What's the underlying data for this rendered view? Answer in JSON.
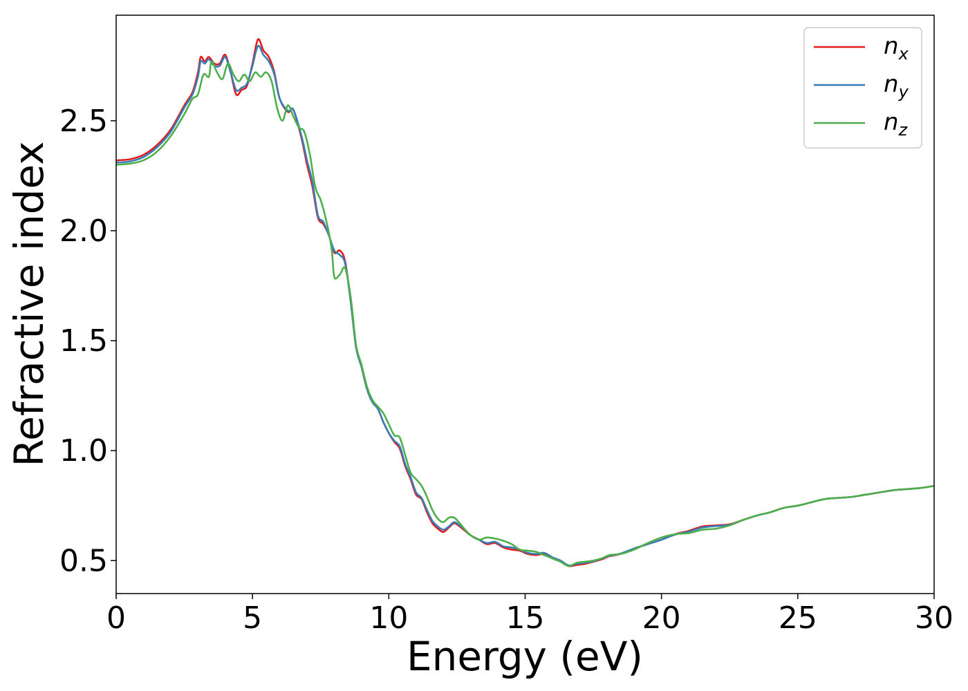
{
  "chart_data": {
    "type": "line",
    "title": "",
    "xlabel": "Energy (eV)",
    "ylabel": "Refractive index",
    "xlim": [
      0,
      30
    ],
    "ylim": [
      0.35,
      2.98
    ],
    "xticks": [
      0,
      5,
      10,
      15,
      20,
      25,
      30
    ],
    "yticks": [
      0.5,
      1.0,
      1.5,
      2.0,
      2.5
    ],
    "xtick_labels": [
      "0",
      "5",
      "10",
      "15",
      "20",
      "25",
      "30"
    ],
    "ytick_labels": [
      "0.5",
      "1.0",
      "1.5",
      "2.0",
      "2.5"
    ],
    "grid": false,
    "legend_position": "top-right",
    "series": [
      {
        "name": "n",
        "subscript": "x",
        "color": "#e41a1c",
        "points": [
          [
            0,
            2.32
          ],
          [
            0.5,
            2.325
          ],
          [
            1.0,
            2.345
          ],
          [
            1.5,
            2.39
          ],
          [
            2.0,
            2.46
          ],
          [
            2.5,
            2.57
          ],
          [
            2.8,
            2.63
          ],
          [
            3.0,
            2.72
          ],
          [
            3.1,
            2.79
          ],
          [
            3.25,
            2.77
          ],
          [
            3.4,
            2.79
          ],
          [
            3.6,
            2.76
          ],
          [
            3.8,
            2.76
          ],
          [
            4.0,
            2.8
          ],
          [
            4.2,
            2.72
          ],
          [
            4.4,
            2.62
          ],
          [
            4.6,
            2.64
          ],
          [
            4.8,
            2.66
          ],
          [
            5.0,
            2.76
          ],
          [
            5.2,
            2.87
          ],
          [
            5.4,
            2.82
          ],
          [
            5.6,
            2.79
          ],
          [
            5.8,
            2.72
          ],
          [
            6.0,
            2.6
          ],
          [
            6.3,
            2.54
          ],
          [
            6.5,
            2.55
          ],
          [
            6.8,
            2.42
          ],
          [
            7.0,
            2.3
          ],
          [
            7.2,
            2.2
          ],
          [
            7.4,
            2.06
          ],
          [
            7.6,
            2.03
          ],
          [
            7.8,
            1.98
          ],
          [
            8.0,
            1.9
          ],
          [
            8.2,
            1.91
          ],
          [
            8.4,
            1.86
          ],
          [
            8.6,
            1.68
          ],
          [
            8.8,
            1.47
          ],
          [
            9.0,
            1.38
          ],
          [
            9.2,
            1.28
          ],
          [
            9.4,
            1.22
          ],
          [
            9.6,
            1.19
          ],
          [
            9.8,
            1.13
          ],
          [
            10.0,
            1.08
          ],
          [
            10.2,
            1.04
          ],
          [
            10.4,
            1.01
          ],
          [
            10.6,
            0.93
          ],
          [
            10.8,
            0.87
          ],
          [
            11.0,
            0.8
          ],
          [
            11.2,
            0.78
          ],
          [
            11.4,
            0.72
          ],
          [
            11.6,
            0.67
          ],
          [
            11.8,
            0.645
          ],
          [
            12.0,
            0.63
          ],
          [
            12.2,
            0.65
          ],
          [
            12.4,
            0.67
          ],
          [
            12.6,
            0.655
          ],
          [
            12.8,
            0.635
          ],
          [
            13.0,
            0.615
          ],
          [
            13.3,
            0.595
          ],
          [
            13.6,
            0.575
          ],
          [
            13.9,
            0.58
          ],
          [
            14.2,
            0.56
          ],
          [
            14.5,
            0.55
          ],
          [
            14.8,
            0.545
          ],
          [
            15.1,
            0.53
          ],
          [
            15.4,
            0.525
          ],
          [
            15.7,
            0.53
          ],
          [
            16.0,
            0.51
          ],
          [
            16.3,
            0.495
          ],
          [
            16.6,
            0.475
          ],
          [
            16.9,
            0.48
          ],
          [
            17.2,
            0.485
          ],
          [
            17.5,
            0.495
          ],
          [
            17.8,
            0.505
          ],
          [
            18.1,
            0.52
          ],
          [
            18.5,
            0.53
          ],
          [
            19.0,
            0.555
          ],
          [
            19.5,
            0.575
          ],
          [
            20.0,
            0.595
          ],
          [
            20.5,
            0.62
          ],
          [
            21.0,
            0.635
          ],
          [
            21.5,
            0.655
          ],
          [
            22.0,
            0.66
          ],
          [
            22.5,
            0.665
          ],
          [
            23.0,
            0.685
          ],
          [
            23.5,
            0.705
          ],
          [
            24.0,
            0.72
          ],
          [
            24.5,
            0.74
          ],
          [
            25.0,
            0.75
          ],
          [
            25.5,
            0.765
          ],
          [
            26.0,
            0.78
          ],
          [
            26.5,
            0.785
          ],
          [
            27.0,
            0.79
          ],
          [
            27.5,
            0.8
          ],
          [
            28.0,
            0.81
          ],
          [
            28.5,
            0.82
          ],
          [
            29.0,
            0.825
          ],
          [
            29.5,
            0.83
          ],
          [
            30.0,
            0.84
          ]
        ]
      },
      {
        "name": "n",
        "subscript": "y",
        "color": "#377eb8",
        "points": [
          [
            0,
            2.31
          ],
          [
            0.5,
            2.315
          ],
          [
            1.0,
            2.335
          ],
          [
            1.5,
            2.38
          ],
          [
            2.0,
            2.45
          ],
          [
            2.5,
            2.56
          ],
          [
            2.8,
            2.62
          ],
          [
            3.0,
            2.7
          ],
          [
            3.1,
            2.77
          ],
          [
            3.25,
            2.76
          ],
          [
            3.4,
            2.78
          ],
          [
            3.6,
            2.75
          ],
          [
            3.8,
            2.75
          ],
          [
            4.0,
            2.79
          ],
          [
            4.2,
            2.72
          ],
          [
            4.4,
            2.64
          ],
          [
            4.6,
            2.65
          ],
          [
            4.8,
            2.67
          ],
          [
            5.0,
            2.75
          ],
          [
            5.2,
            2.84
          ],
          [
            5.4,
            2.8
          ],
          [
            5.6,
            2.77
          ],
          [
            5.8,
            2.71
          ],
          [
            6.0,
            2.6
          ],
          [
            6.3,
            2.545
          ],
          [
            6.5,
            2.55
          ],
          [
            6.8,
            2.43
          ],
          [
            7.0,
            2.32
          ],
          [
            7.2,
            2.22
          ],
          [
            7.4,
            2.07
          ],
          [
            7.6,
            2.04
          ],
          [
            7.8,
            1.98
          ],
          [
            8.0,
            1.91
          ],
          [
            8.2,
            1.89
          ],
          [
            8.4,
            1.85
          ],
          [
            8.6,
            1.68
          ],
          [
            8.8,
            1.47
          ],
          [
            9.0,
            1.38
          ],
          [
            9.2,
            1.28
          ],
          [
            9.4,
            1.22
          ],
          [
            9.6,
            1.19
          ],
          [
            9.8,
            1.13
          ],
          [
            10.0,
            1.08
          ],
          [
            10.2,
            1.045
          ],
          [
            10.4,
            1.02
          ],
          [
            10.6,
            0.94
          ],
          [
            10.8,
            0.88
          ],
          [
            11.0,
            0.81
          ],
          [
            11.2,
            0.785
          ],
          [
            11.4,
            0.73
          ],
          [
            11.6,
            0.68
          ],
          [
            11.8,
            0.655
          ],
          [
            12.0,
            0.64
          ],
          [
            12.2,
            0.655
          ],
          [
            12.4,
            0.675
          ],
          [
            12.6,
            0.66
          ],
          [
            12.8,
            0.64
          ],
          [
            13.0,
            0.615
          ],
          [
            13.3,
            0.595
          ],
          [
            13.6,
            0.58
          ],
          [
            13.9,
            0.585
          ],
          [
            14.2,
            0.565
          ],
          [
            14.5,
            0.56
          ],
          [
            14.8,
            0.55
          ],
          [
            15.1,
            0.535
          ],
          [
            15.4,
            0.53
          ],
          [
            15.7,
            0.535
          ],
          [
            16.0,
            0.515
          ],
          [
            16.3,
            0.5
          ],
          [
            16.6,
            0.478
          ],
          [
            16.9,
            0.485
          ],
          [
            17.2,
            0.49
          ],
          [
            17.5,
            0.497
          ],
          [
            17.8,
            0.508
          ],
          [
            18.1,
            0.522
          ],
          [
            18.5,
            0.532
          ],
          [
            19.0,
            0.555
          ],
          [
            19.5,
            0.575
          ],
          [
            20.0,
            0.595
          ],
          [
            20.5,
            0.618
          ],
          [
            21.0,
            0.632
          ],
          [
            21.5,
            0.65
          ],
          [
            22.0,
            0.657
          ],
          [
            22.5,
            0.662
          ],
          [
            23.0,
            0.685
          ],
          [
            23.5,
            0.705
          ],
          [
            24.0,
            0.72
          ],
          [
            24.5,
            0.74
          ],
          [
            25.0,
            0.75
          ],
          [
            25.5,
            0.765
          ],
          [
            26.0,
            0.78
          ],
          [
            26.5,
            0.785
          ],
          [
            27.0,
            0.79
          ],
          [
            27.5,
            0.8
          ],
          [
            28.0,
            0.81
          ],
          [
            28.5,
            0.82
          ],
          [
            29.0,
            0.825
          ],
          [
            29.5,
            0.83
          ],
          [
            30.0,
            0.84
          ]
        ]
      },
      {
        "name": "n",
        "subscript": "z",
        "color": "#4daf4a",
        "points": [
          [
            0,
            2.3
          ],
          [
            0.5,
            2.305
          ],
          [
            1.0,
            2.32
          ],
          [
            1.5,
            2.36
          ],
          [
            2.0,
            2.43
          ],
          [
            2.5,
            2.53
          ],
          [
            2.8,
            2.6
          ],
          [
            3.0,
            2.62
          ],
          [
            3.2,
            2.71
          ],
          [
            3.4,
            2.7
          ],
          [
            3.5,
            2.77
          ],
          [
            3.7,
            2.72
          ],
          [
            3.9,
            2.69
          ],
          [
            4.1,
            2.76
          ],
          [
            4.3,
            2.71
          ],
          [
            4.5,
            2.68
          ],
          [
            4.7,
            2.71
          ],
          [
            4.9,
            2.68
          ],
          [
            5.1,
            2.72
          ],
          [
            5.3,
            2.7
          ],
          [
            5.5,
            2.72
          ],
          [
            5.7,
            2.68
          ],
          [
            5.9,
            2.56
          ],
          [
            6.1,
            2.5
          ],
          [
            6.3,
            2.57
          ],
          [
            6.5,
            2.52
          ],
          [
            6.7,
            2.47
          ],
          [
            6.9,
            2.45
          ],
          [
            7.1,
            2.35
          ],
          [
            7.3,
            2.2
          ],
          [
            7.5,
            2.14
          ],
          [
            7.7,
            2.05
          ],
          [
            7.9,
            1.92
          ],
          [
            8.0,
            1.79
          ],
          [
            8.2,
            1.8
          ],
          [
            8.4,
            1.83
          ],
          [
            8.6,
            1.7
          ],
          [
            8.8,
            1.48
          ],
          [
            9.0,
            1.39
          ],
          [
            9.2,
            1.29
          ],
          [
            9.4,
            1.23
          ],
          [
            9.6,
            1.2
          ],
          [
            9.8,
            1.17
          ],
          [
            10.0,
            1.12
          ],
          [
            10.2,
            1.07
          ],
          [
            10.4,
            1.06
          ],
          [
            10.6,
            0.98
          ],
          [
            10.8,
            0.9
          ],
          [
            11.0,
            0.87
          ],
          [
            11.2,
            0.84
          ],
          [
            11.4,
            0.79
          ],
          [
            11.6,
            0.73
          ],
          [
            11.8,
            0.69
          ],
          [
            12.0,
            0.675
          ],
          [
            12.2,
            0.695
          ],
          [
            12.4,
            0.695
          ],
          [
            12.6,
            0.67
          ],
          [
            12.8,
            0.64
          ],
          [
            13.0,
            0.615
          ],
          [
            13.3,
            0.595
          ],
          [
            13.6,
            0.605
          ],
          [
            13.9,
            0.6
          ],
          [
            14.2,
            0.59
          ],
          [
            14.5,
            0.575
          ],
          [
            14.8,
            0.55
          ],
          [
            15.1,
            0.545
          ],
          [
            15.4,
            0.54
          ],
          [
            15.7,
            0.525
          ],
          [
            16.0,
            0.51
          ],
          [
            16.3,
            0.495
          ],
          [
            16.6,
            0.475
          ],
          [
            16.9,
            0.49
          ],
          [
            17.2,
            0.495
          ],
          [
            17.5,
            0.5
          ],
          [
            17.8,
            0.51
          ],
          [
            18.1,
            0.525
          ],
          [
            18.5,
            0.53
          ],
          [
            19.0,
            0.55
          ],
          [
            19.5,
            0.58
          ],
          [
            20.0,
            0.605
          ],
          [
            20.5,
            0.62
          ],
          [
            21.0,
            0.625
          ],
          [
            21.5,
            0.64
          ],
          [
            22.0,
            0.645
          ],
          [
            22.5,
            0.66
          ],
          [
            23.0,
            0.685
          ],
          [
            23.5,
            0.705
          ],
          [
            24.0,
            0.72
          ],
          [
            24.5,
            0.74
          ],
          [
            25.0,
            0.75
          ],
          [
            25.5,
            0.765
          ],
          [
            26.0,
            0.78
          ],
          [
            26.5,
            0.785
          ],
          [
            27.0,
            0.79
          ],
          [
            27.5,
            0.8
          ],
          [
            28.0,
            0.81
          ],
          [
            28.5,
            0.82
          ],
          [
            29.0,
            0.825
          ],
          [
            29.5,
            0.83
          ],
          [
            30.0,
            0.84
          ]
        ]
      }
    ]
  }
}
